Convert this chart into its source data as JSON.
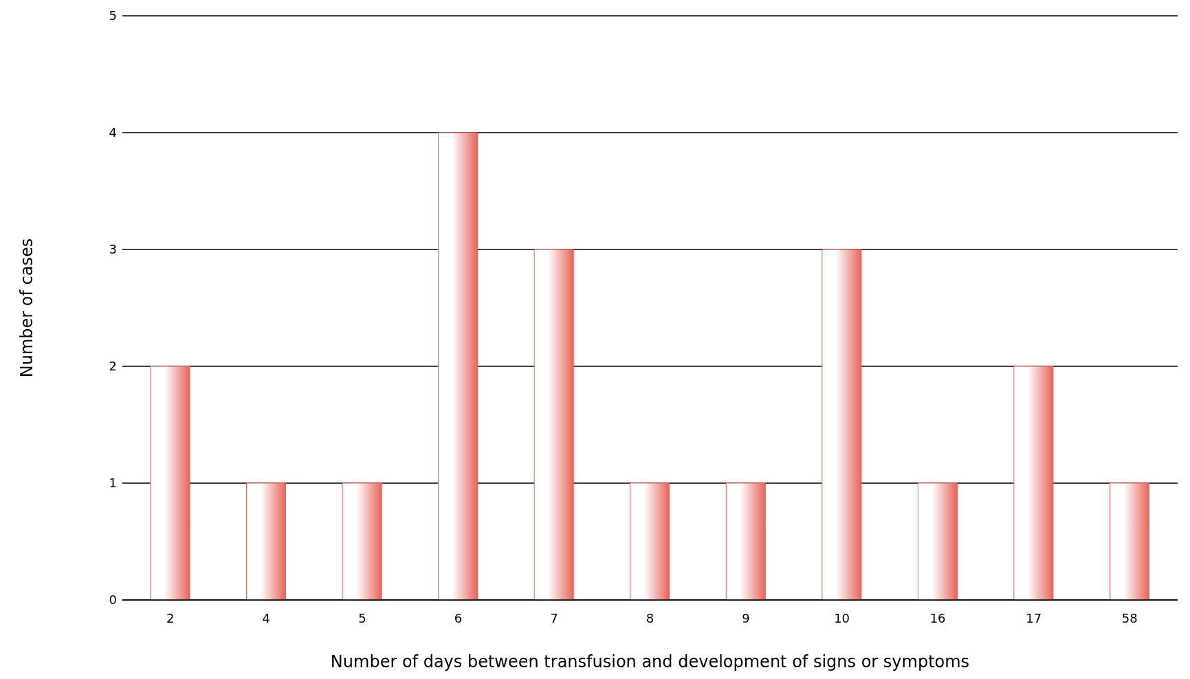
{
  "chart_data": {
    "type": "bar",
    "xlabel": "Number of days between transfusion and development of signs or symptoms",
    "ylabel": "Number of cases",
    "categories": [
      "2",
      "4",
      "5",
      "6",
      "7",
      "8",
      "9",
      "10",
      "16",
      "17",
      "58"
    ],
    "values": [
      2,
      1,
      1,
      4,
      3,
      1,
      1,
      3,
      1,
      2,
      1
    ],
    "color": "#e8635a",
    "ylim": [
      0,
      5
    ],
    "yticks": [
      0,
      1,
      2,
      3,
      4,
      5
    ],
    "grid": "y"
  }
}
